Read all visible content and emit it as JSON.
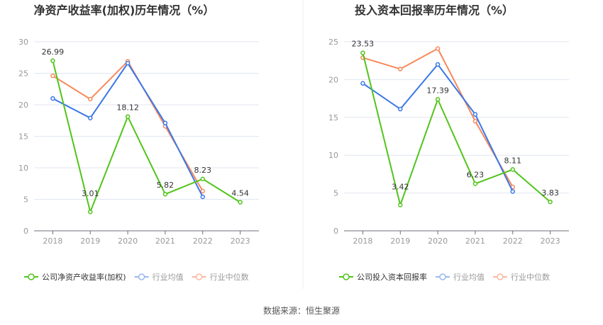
{
  "source": "数据来源：恒生聚源",
  "colors": {
    "company": "#52c41a",
    "mean": "#3b78e7",
    "median": "#f7885a",
    "mean_legend": "#9ab8f0",
    "median_legend": "#f9b9a0"
  },
  "chart_data": [
    {
      "type": "line",
      "title": "净资产收益率(加权)历年情况（%）",
      "categories": [
        "2018",
        "2019",
        "2020",
        "2021",
        "2022",
        "2023"
      ],
      "ylim": [
        0,
        30
      ],
      "yticks": [
        0,
        5,
        10,
        15,
        20,
        25,
        30
      ],
      "grid": true,
      "legend_position": "bottom",
      "series": [
        {
          "name": "公司净资产收益率(加权)",
          "values": [
            26.99,
            3.01,
            18.12,
            5.82,
            8.23,
            4.54
          ],
          "labels": true
        },
        {
          "name": "行业均值",
          "values": [
            21.0,
            17.9,
            26.6,
            17.1,
            5.4,
            null
          ]
        },
        {
          "name": "行业中位数",
          "values": [
            24.6,
            20.9,
            26.9,
            16.6,
            6.3,
            null
          ]
        }
      ]
    },
    {
      "type": "line",
      "title": "投入资本回报率历年情况（%）",
      "categories": [
        "2018",
        "2019",
        "2020",
        "2021",
        "2022",
        "2023"
      ],
      "ylim": [
        0,
        25
      ],
      "yticks": [
        0,
        5,
        10,
        15,
        20,
        25
      ],
      "grid": true,
      "legend_position": "bottom",
      "series": [
        {
          "name": "公司投入资本回报率",
          "values": [
            23.53,
            3.42,
            17.39,
            6.23,
            8.11,
            3.83
          ],
          "labels": true
        },
        {
          "name": "行业均值",
          "values": [
            19.5,
            16.1,
            22.0,
            15.4,
            5.2,
            null
          ]
        },
        {
          "name": "行业中位数",
          "values": [
            22.9,
            21.4,
            24.1,
            14.5,
            5.8,
            null
          ]
        }
      ]
    }
  ]
}
